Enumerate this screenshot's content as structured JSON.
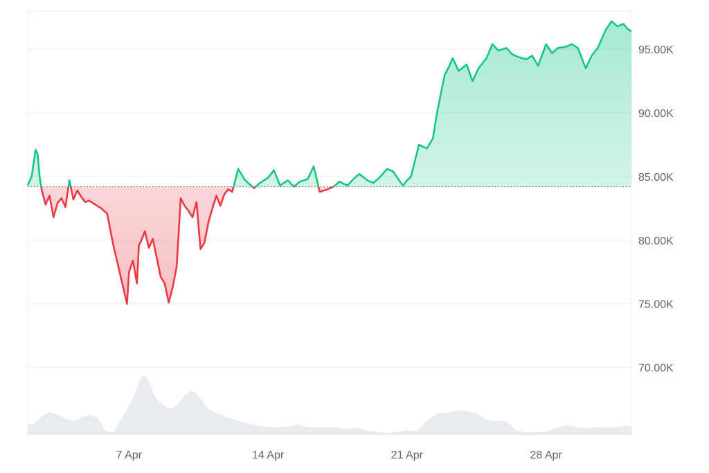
{
  "chart_data": {
    "type": "area",
    "title": "",
    "xlabel": "",
    "ylabel": "",
    "reference_value": 84200,
    "y_ticks": [
      70000,
      75000,
      80000,
      85000,
      90000,
      95000
    ],
    "y_tick_labels": [
      "70.00K",
      "75.00K",
      "80.00K",
      "85.00K",
      "90.00K",
      "95.00K"
    ],
    "ylim": [
      64700,
      98000
    ],
    "x_ticks": [
      7,
      14,
      21,
      28
    ],
    "x_tick_labels": [
      "7 Apr",
      "14 Apr",
      "21 Apr",
      "28 Apr"
    ],
    "xlim": [
      1.9,
      32.3
    ],
    "colors": {
      "up": "#16c784",
      "down": "#ea3943",
      "volume": "#e8ebf0",
      "grid": "#ededed",
      "axis_text": "#5b6270"
    },
    "price_series": {
      "x": [
        1.9,
        2.1,
        2.3,
        2.4,
        2.5,
        2.6,
        2.8,
        3.0,
        3.2,
        3.4,
        3.6,
        3.8,
        4.0,
        4.2,
        4.4,
        4.6,
        4.8,
        5.0,
        5.3,
        5.6,
        5.9,
        6.2,
        6.5,
        6.9,
        7.0,
        7.2,
        7.4,
        7.5,
        7.6,
        7.8,
        8.0,
        8.2,
        8.4,
        8.6,
        8.8,
        9.0,
        9.2,
        9.4,
        9.5,
        9.6,
        9.8,
        10.0,
        10.2,
        10.4,
        10.6,
        10.8,
        11.0,
        11.2,
        11.4,
        11.6,
        11.8,
        12.0,
        12.2,
        12.5,
        12.8,
        13.0,
        13.3,
        13.6,
        14.0,
        14.3,
        14.6,
        15.0,
        15.3,
        15.6,
        16.0,
        16.3,
        16.6,
        17.0,
        17.3,
        17.6,
        18.0,
        18.3,
        18.6,
        19.0,
        19.3,
        19.6,
        20.0,
        20.3,
        20.6,
        20.8,
        21.0,
        21.2,
        21.6,
        22.0,
        22.3,
        22.5,
        22.7,
        22.9,
        23.1,
        23.3,
        23.6,
        24.0,
        24.3,
        24.6,
        25.0,
        25.3,
        25.6,
        26.0,
        26.3,
        26.6,
        27.0,
        27.3,
        27.6,
        28.0,
        28.3,
        28.6,
        29.0,
        29.3,
        29.6,
        30.0,
        30.3,
        30.6,
        31.0,
        31.3,
        31.6,
        31.9,
        32.1,
        32.3
      ],
      "y": [
        84300,
        85000,
        87100,
        86800,
        85000,
        84000,
        82800,
        83500,
        81800,
        82900,
        83300,
        82600,
        84700,
        83200,
        83900,
        83400,
        83000,
        83100,
        82800,
        82500,
        82100,
        79700,
        77700,
        75000,
        77500,
        78400,
        76600,
        79600,
        79900,
        80700,
        79400,
        80100,
        78600,
        77100,
        76600,
        75100,
        76300,
        77900,
        80500,
        83300,
        82700,
        82300,
        81800,
        83000,
        79300,
        79800,
        81400,
        82500,
        83500,
        82700,
        83600,
        84000,
        83800,
        85600,
        84800,
        84500,
        84100,
        84500,
        84900,
        85500,
        84300,
        84700,
        84200,
        84600,
        84800,
        85800,
        83800,
        84000,
        84200,
        84600,
        84300,
        84800,
        85200,
        84700,
        84500,
        84900,
        85600,
        85400,
        84700,
        84300,
        84700,
        85000,
        87500,
        87200,
        88000,
        89900,
        91500,
        93000,
        93600,
        94300,
        93300,
        93800,
        92500,
        93500,
        94300,
        95400,
        94900,
        95100,
        94600,
        94400,
        94200,
        94500,
        93700,
        95400,
        94700,
        95100,
        95200,
        95400,
        95100,
        93500,
        94500,
        95100,
        96500,
        97200,
        96800,
        97000,
        96600,
        96400
      ]
    },
    "volume_series": {
      "x": [
        1.9,
        2.2,
        2.6,
        3.0,
        3.4,
        3.8,
        4.2,
        4.6,
        5.0,
        5.4,
        5.8,
        6.2,
        6.6,
        6.9,
        7.2,
        7.5,
        7.7,
        7.9,
        8.1,
        8.3,
        8.6,
        8.9,
        9.2,
        9.5,
        9.8,
        10.1,
        10.4,
        10.7,
        11.0,
        11.4,
        11.8,
        12.2,
        12.6,
        13.0,
        13.5,
        14.0,
        14.5,
        15.0,
        15.5,
        16.0,
        16.5,
        17.0,
        17.5,
        18.0,
        18.5,
        19.0,
        19.5,
        20.0,
        20.5,
        21.0,
        21.5,
        22.0,
        22.5,
        23.0,
        23.5,
        24.0,
        24.5,
        25.0,
        25.5,
        26.0,
        26.5,
        27.0,
        27.5,
        28.0,
        28.5,
        29.0,
        29.5,
        30.0,
        30.5,
        31.0,
        31.5,
        32.0,
        32.3
      ],
      "y": [
        1.6,
        1.8,
        3.0,
        3.7,
        3.4,
        2.7,
        2.2,
        2.9,
        3.3,
        2.9,
        0.7,
        0.4,
        2.5,
        4.2,
        6.0,
        8.5,
        9.8,
        9.5,
        8.1,
        6.3,
        5.2,
        4.5,
        4.3,
        5.3,
        6.5,
        7.2,
        6.8,
        5.5,
        4.2,
        3.6,
        3.1,
        2.6,
        2.2,
        1.9,
        1.5,
        1.3,
        1.3,
        1.4,
        1.7,
        1.3,
        1.2,
        1.2,
        1.2,
        1.0,
        1.2,
        0.7,
        0.5,
        0.3,
        0.5,
        0.8,
        0.6,
        2.3,
        3.5,
        3.6,
        4.0,
        3.9,
        3.5,
        2.5,
        2.3,
        2.3,
        0.7,
        0.4,
        0.5,
        0.5,
        1.1,
        1.6,
        1.3,
        1.1,
        1.3,
        1.2,
        1.3,
        1.5,
        1.4
      ]
    }
  }
}
